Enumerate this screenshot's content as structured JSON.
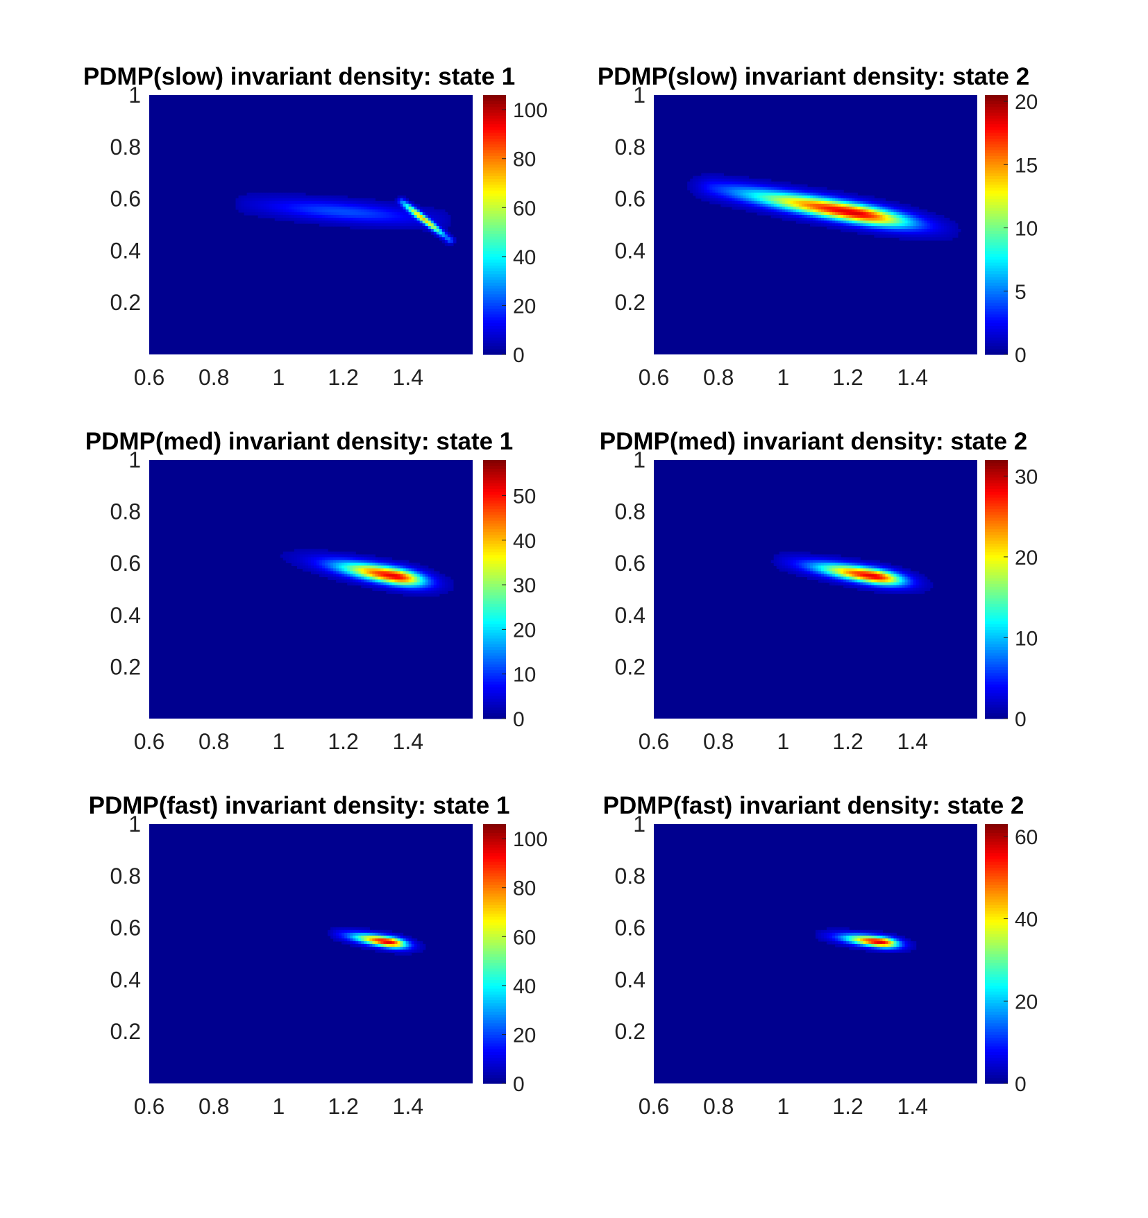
{
  "figure": {
    "background": "#ffffff"
  },
  "colormap": [
    "#00008f",
    "#0000ff",
    "#0080ff",
    "#00ffff",
    "#80ff80",
    "#ffff00",
    "#ff8000",
    "#ff0000",
    "#800000"
  ],
  "chart_data": [
    {
      "type": "heatmap",
      "title": "PDMP(slow) invariant density: state 1",
      "xlim": [
        0.6,
        1.6
      ],
      "ylim": [
        0,
        1
      ],
      "xticks": [
        0.6,
        0.8,
        1,
        1.2,
        1.4
      ],
      "xtick_labels": [
        "0.6",
        "0.8",
        "1",
        "1.2",
        "1.4"
      ],
      "yticks": [
        0.2,
        0.4,
        0.6,
        0.8,
        1
      ],
      "ytick_labels": [
        "0.2",
        "0.4",
        "0.6",
        "0.8",
        "1"
      ],
      "colorbar": {
        "min": 0,
        "max": 106,
        "ticks": [
          0,
          20,
          40,
          60,
          80,
          100
        ],
        "tick_labels": [
          "0",
          "20",
          "40",
          "60",
          "80",
          "100"
        ]
      },
      "density_features": [
        {
          "shape": "diffuse_blob",
          "x": [
            0.9,
            1.5
          ],
          "y": [
            0.58,
            0.52
          ],
          "x_sigma": 0.12,
          "y_sigma": 0.025,
          "peak": 20
        },
        {
          "shape": "ridge",
          "x": [
            1.38,
            1.53
          ],
          "y": [
            0.59,
            0.44
          ],
          "width": 0.008,
          "peak": 70
        }
      ]
    },
    {
      "type": "heatmap",
      "title": "PDMP(slow) invariant density: state 2",
      "xlim": [
        0.6,
        1.6
      ],
      "ylim": [
        0,
        1
      ],
      "xticks": [
        0.6,
        0.8,
        1,
        1.2,
        1.4
      ],
      "xtick_labels": [
        "0.6",
        "0.8",
        "1",
        "1.2",
        "1.4"
      ],
      "yticks": [
        0.2,
        0.4,
        0.6,
        0.8,
        1
      ],
      "ytick_labels": [
        "0.2",
        "0.4",
        "0.6",
        "0.8",
        "1"
      ],
      "colorbar": {
        "min": 0,
        "max": 20.5,
        "ticks": [
          0,
          5,
          10,
          15,
          20
        ],
        "tick_labels": [
          "0",
          "5",
          "10",
          "15",
          "20"
        ]
      },
      "density_features": [
        {
          "shape": "elongated_blob",
          "x": [
            0.78,
            1.5
          ],
          "y": [
            0.63,
            0.47
          ],
          "center_x": 1.22,
          "center_y": 0.545,
          "x_sigma": 0.17,
          "y_sigma": 0.025,
          "peak": 20
        }
      ]
    },
    {
      "type": "heatmap",
      "title": "PDMP(med) invariant density: state 1",
      "xlim": [
        0.6,
        1.6
      ],
      "ylim": [
        0,
        1
      ],
      "xticks": [
        0.6,
        0.8,
        1,
        1.2,
        1.4
      ],
      "xtick_labels": [
        "0.6",
        "0.8",
        "1",
        "1.2",
        "1.4"
      ],
      "yticks": [
        0.2,
        0.4,
        0.6,
        0.8,
        1
      ],
      "ytick_labels": [
        "0.2",
        "0.4",
        "0.6",
        "0.8",
        "1"
      ],
      "colorbar": {
        "min": 0,
        "max": 58,
        "ticks": [
          0,
          10,
          20,
          30,
          40,
          50
        ],
        "tick_labels": [
          "0",
          "10",
          "20",
          "30",
          "40",
          "50"
        ]
      },
      "density_features": [
        {
          "shape": "elongated_blob",
          "x": [
            1.0,
            1.52
          ],
          "y": [
            0.59,
            0.47
          ],
          "center_x": 1.36,
          "center_y": 0.55,
          "x_sigma": 0.09,
          "y_sigma": 0.022,
          "peak": 56
        }
      ]
    },
    {
      "type": "heatmap",
      "title": "PDMP(med) invariant density: state 2",
      "xlim": [
        0.6,
        1.6
      ],
      "ylim": [
        0,
        1
      ],
      "xticks": [
        0.6,
        0.8,
        1,
        1.2,
        1.4
      ],
      "xtick_labels": [
        "0.6",
        "0.8",
        "1",
        "1.2",
        "1.4"
      ],
      "yticks": [
        0.2,
        0.4,
        0.6,
        0.8,
        1
      ],
      "ytick_labels": [
        "0.2",
        "0.4",
        "0.6",
        "0.8",
        "1"
      ],
      "colorbar": {
        "min": 0,
        "max": 32,
        "ticks": [
          0,
          10,
          20,
          30
        ],
        "tick_labels": [
          "0",
          "10",
          "20",
          "30"
        ]
      },
      "density_features": [
        {
          "shape": "elongated_blob",
          "x": [
            1.0,
            1.48
          ],
          "y": [
            0.59,
            0.49
          ],
          "center_x": 1.28,
          "center_y": 0.55,
          "x_sigma": 0.09,
          "y_sigma": 0.02,
          "peak": 31
        }
      ]
    },
    {
      "type": "heatmap",
      "title": "PDMP(fast) invariant density: state 1",
      "xlim": [
        0.6,
        1.6
      ],
      "ylim": [
        0,
        1
      ],
      "xticks": [
        0.6,
        0.8,
        1,
        1.2,
        1.4
      ],
      "xtick_labels": [
        "0.6",
        "0.8",
        "1",
        "1.2",
        "1.4"
      ],
      "yticks": [
        0.2,
        0.4,
        0.6,
        0.8,
        1
      ],
      "ytick_labels": [
        "0.2",
        "0.4",
        "0.6",
        "0.8",
        "1"
      ],
      "colorbar": {
        "min": 0,
        "max": 106,
        "ticks": [
          0,
          20,
          40,
          60,
          80,
          100
        ],
        "tick_labels": [
          "0",
          "20",
          "40",
          "60",
          "80",
          "100"
        ]
      },
      "density_features": [
        {
          "shape": "elongated_blob",
          "x": [
            1.18,
            1.48
          ],
          "y": [
            0.58,
            0.52
          ],
          "center_x": 1.34,
          "center_y": 0.545,
          "x_sigma": 0.055,
          "y_sigma": 0.014,
          "peak": 104
        }
      ]
    },
    {
      "type": "heatmap",
      "title": "PDMP(fast) invariant density: state 2",
      "xlim": [
        0.6,
        1.6
      ],
      "ylim": [
        0,
        1
      ],
      "xticks": [
        0.6,
        0.8,
        1,
        1.2,
        1.4
      ],
      "xtick_labels": [
        "0.6",
        "0.8",
        "1",
        "1.2",
        "1.4"
      ],
      "yticks": [
        0.2,
        0.4,
        0.6,
        0.8,
        1
      ],
      "ytick_labels": [
        "0.2",
        "0.4",
        "0.6",
        "0.8",
        "1"
      ],
      "colorbar": {
        "min": 0,
        "max": 63,
        "ticks": [
          0,
          20,
          40,
          60
        ],
        "tick_labels": [
          "0",
          "20",
          "40",
          "60"
        ]
      },
      "density_features": [
        {
          "shape": "elongated_blob",
          "x": [
            1.12,
            1.45
          ],
          "y": [
            0.57,
            0.52
          ],
          "center_x": 1.3,
          "center_y": 0.545,
          "x_sigma": 0.055,
          "y_sigma": 0.014,
          "peak": 62
        }
      ]
    }
  ]
}
